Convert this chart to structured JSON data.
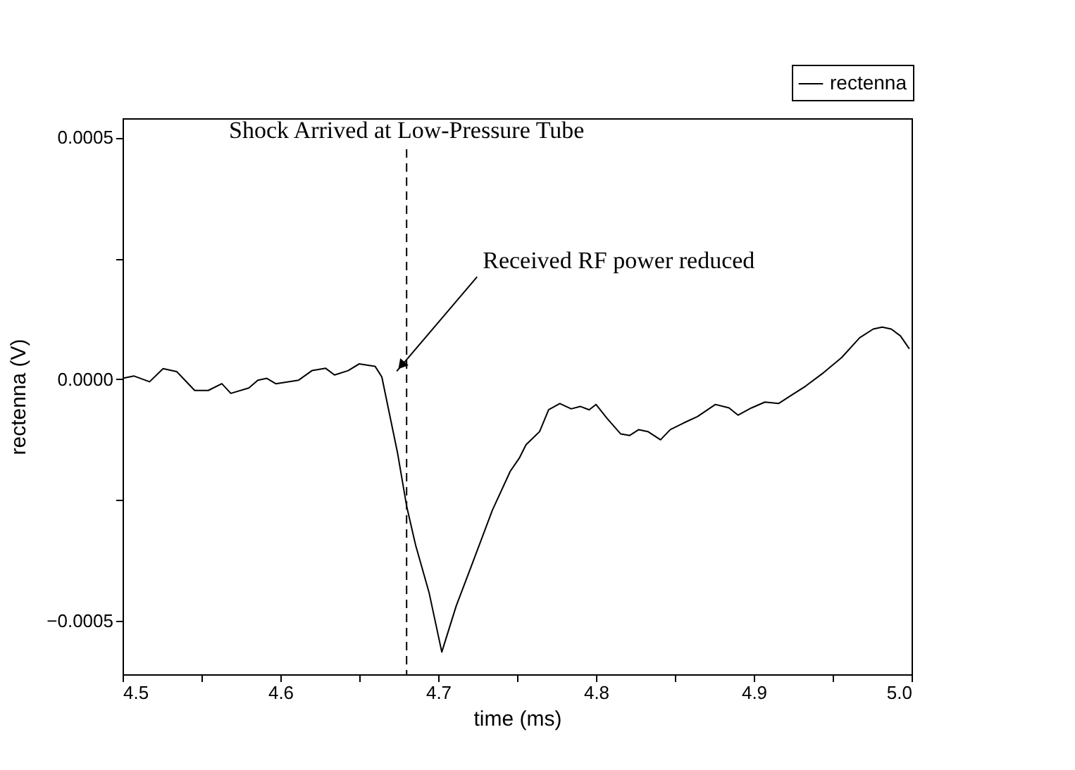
{
  "chart_data": {
    "type": "line",
    "xlabel": "time (ms)",
    "ylabel": "rectenna (V)",
    "xlim": [
      4.5,
      5.0
    ],
    "ylim": [
      -0.00061,
      0.00054
    ],
    "xticks": [
      4.5,
      {
        "value": 4.55,
        "label": null
      },
      4.6,
      {
        "value": 4.65,
        "label": null
      },
      4.7,
      {
        "value": 4.75,
        "label": null
      },
      4.8,
      {
        "value": 4.85,
        "label": null
      },
      4.9,
      {
        "value": 4.95,
        "label": null
      },
      {
        "value": 5.0,
        "label": "5.0"
      }
    ],
    "yticks": [
      -0.0005,
      {
        "value": -0.00025,
        "label": null
      },
      {
        "value": 0,
        "label": "0.0000"
      },
      {
        "value": 0.00025,
        "label": null
      },
      0.0005
    ],
    "grid": false,
    "legend": "top right",
    "line_style": "solid",
    "marker": "none",
    "series": [
      {
        "name": "rectenna",
        "color": "#000000",
        "x": [
          4.5,
          4.5071,
          4.5171,
          4.5257,
          4.5343,
          4.5457,
          4.5543,
          4.5629,
          4.5686,
          4.58,
          4.5857,
          4.5914,
          4.5971,
          4.6114,
          4.62,
          4.6286,
          4.6343,
          4.6429,
          4.65,
          4.66,
          4.6643,
          4.6686,
          4.6743,
          4.68,
          4.6857,
          4.6943,
          4.7023,
          4.7114,
          4.7229,
          4.7343,
          4.7457,
          4.7514,
          4.7557,
          4.7643,
          4.77,
          4.7771,
          4.7843,
          4.79,
          4.7957,
          4.8,
          4.8071,
          4.8157,
          4.8214,
          4.8271,
          4.8329,
          4.8409,
          4.8471,
          4.8557,
          4.8643,
          4.8757,
          4.8843,
          4.89,
          4.8986,
          4.9071,
          4.9157,
          4.9243,
          4.9329,
          4.9443,
          4.9557,
          4.9671,
          4.9757,
          4.9814,
          4.9871,
          4.9929,
          4.9986
        ],
        "values": [
          2e-06,
          7e-06,
          -5e-06,
          2.2e-05,
          1.6e-05,
          -2.3e-05,
          -2.3e-05,
          -9e-06,
          -2.9e-05,
          -1.8e-05,
          -2e-06,
          2e-06,
          -9e-06,
          -2e-06,
          1.8e-05,
          2.3e-05,
          9e-06,
          1.8e-05,
          3.2e-05,
          2.7e-05,
          5e-06,
          -6.3e-05,
          -0.000153,
          -0.000262,
          -0.000343,
          -0.000442,
          -0.000564,
          -0.000469,
          -0.00037,
          -0.000271,
          -0.00019,
          -0.000163,
          -0.000135,
          -0.000108,
          -6.3e-05,
          -5e-05,
          -6.1e-05,
          -5.6e-05,
          -6.3e-05,
          -5.2e-05,
          -8.1e-05,
          -0.000113,
          -0.000116,
          -0.000104,
          -0.000108,
          -0.000125,
          -0.000104,
          -9e-05,
          -7.7e-05,
          -5.2e-05,
          -5.9e-05,
          -7.4e-05,
          -5.9e-05,
          -4.7e-05,
          -5e-05,
          -3.2e-05,
          -1.4e-05,
          1.4e-05,
          4.5e-05,
          8.6e-05,
          0.000104,
          0.000108,
          0.000104,
          9e-05,
          6.3e-05
        ]
      }
    ],
    "ref_lines": [
      {
        "axis": "x",
        "value": 4.68,
        "label": "Shock Arrived at Low-Pressure Tube",
        "color": "#000000",
        "line_style": "dashed"
      }
    ],
    "annotations": [
      "Received RF power reduced"
    ]
  }
}
